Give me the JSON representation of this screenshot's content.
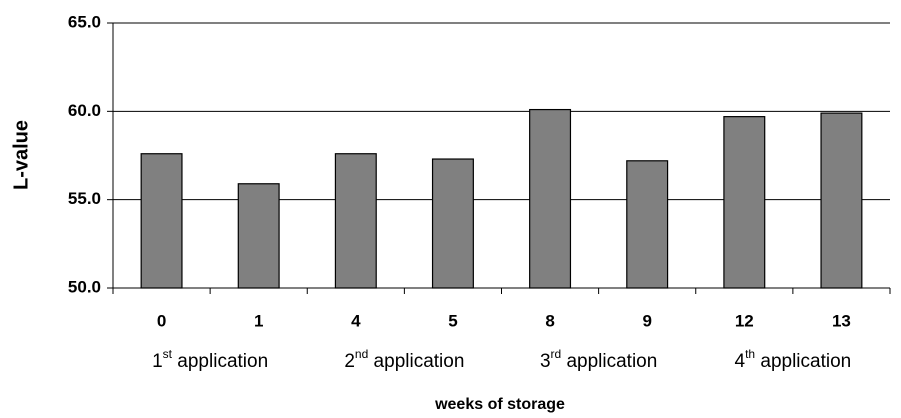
{
  "chart_data": {
    "type": "bar",
    "y_label": "L-value",
    "x_label": "weeks of storage",
    "categories": [
      "0",
      "1",
      "4",
      "5",
      "8",
      "9",
      "12",
      "13"
    ],
    "values": [
      57.6,
      55.9,
      57.6,
      57.3,
      60.1,
      57.2,
      59.7,
      59.9
    ],
    "color": "#808080",
    "groups": [
      {
        "number": "1",
        "sup": "st",
        "text": " application"
      },
      {
        "number": "2",
        "sup": "nd",
        "text": " application"
      },
      {
        "number": "3",
        "sup": "rd",
        "text": " application"
      },
      {
        "number": "4",
        "sup": "th",
        "text": " application"
      }
    ],
    "ylim": [
      50,
      65
    ],
    "yticks": [
      {
        "value": 50,
        "label": "50.0"
      },
      {
        "value": 55,
        "label": "55.0"
      },
      {
        "value": 60,
        "label": "60.0"
      },
      {
        "value": 65,
        "label": "65.0"
      }
    ],
    "grid": true
  }
}
